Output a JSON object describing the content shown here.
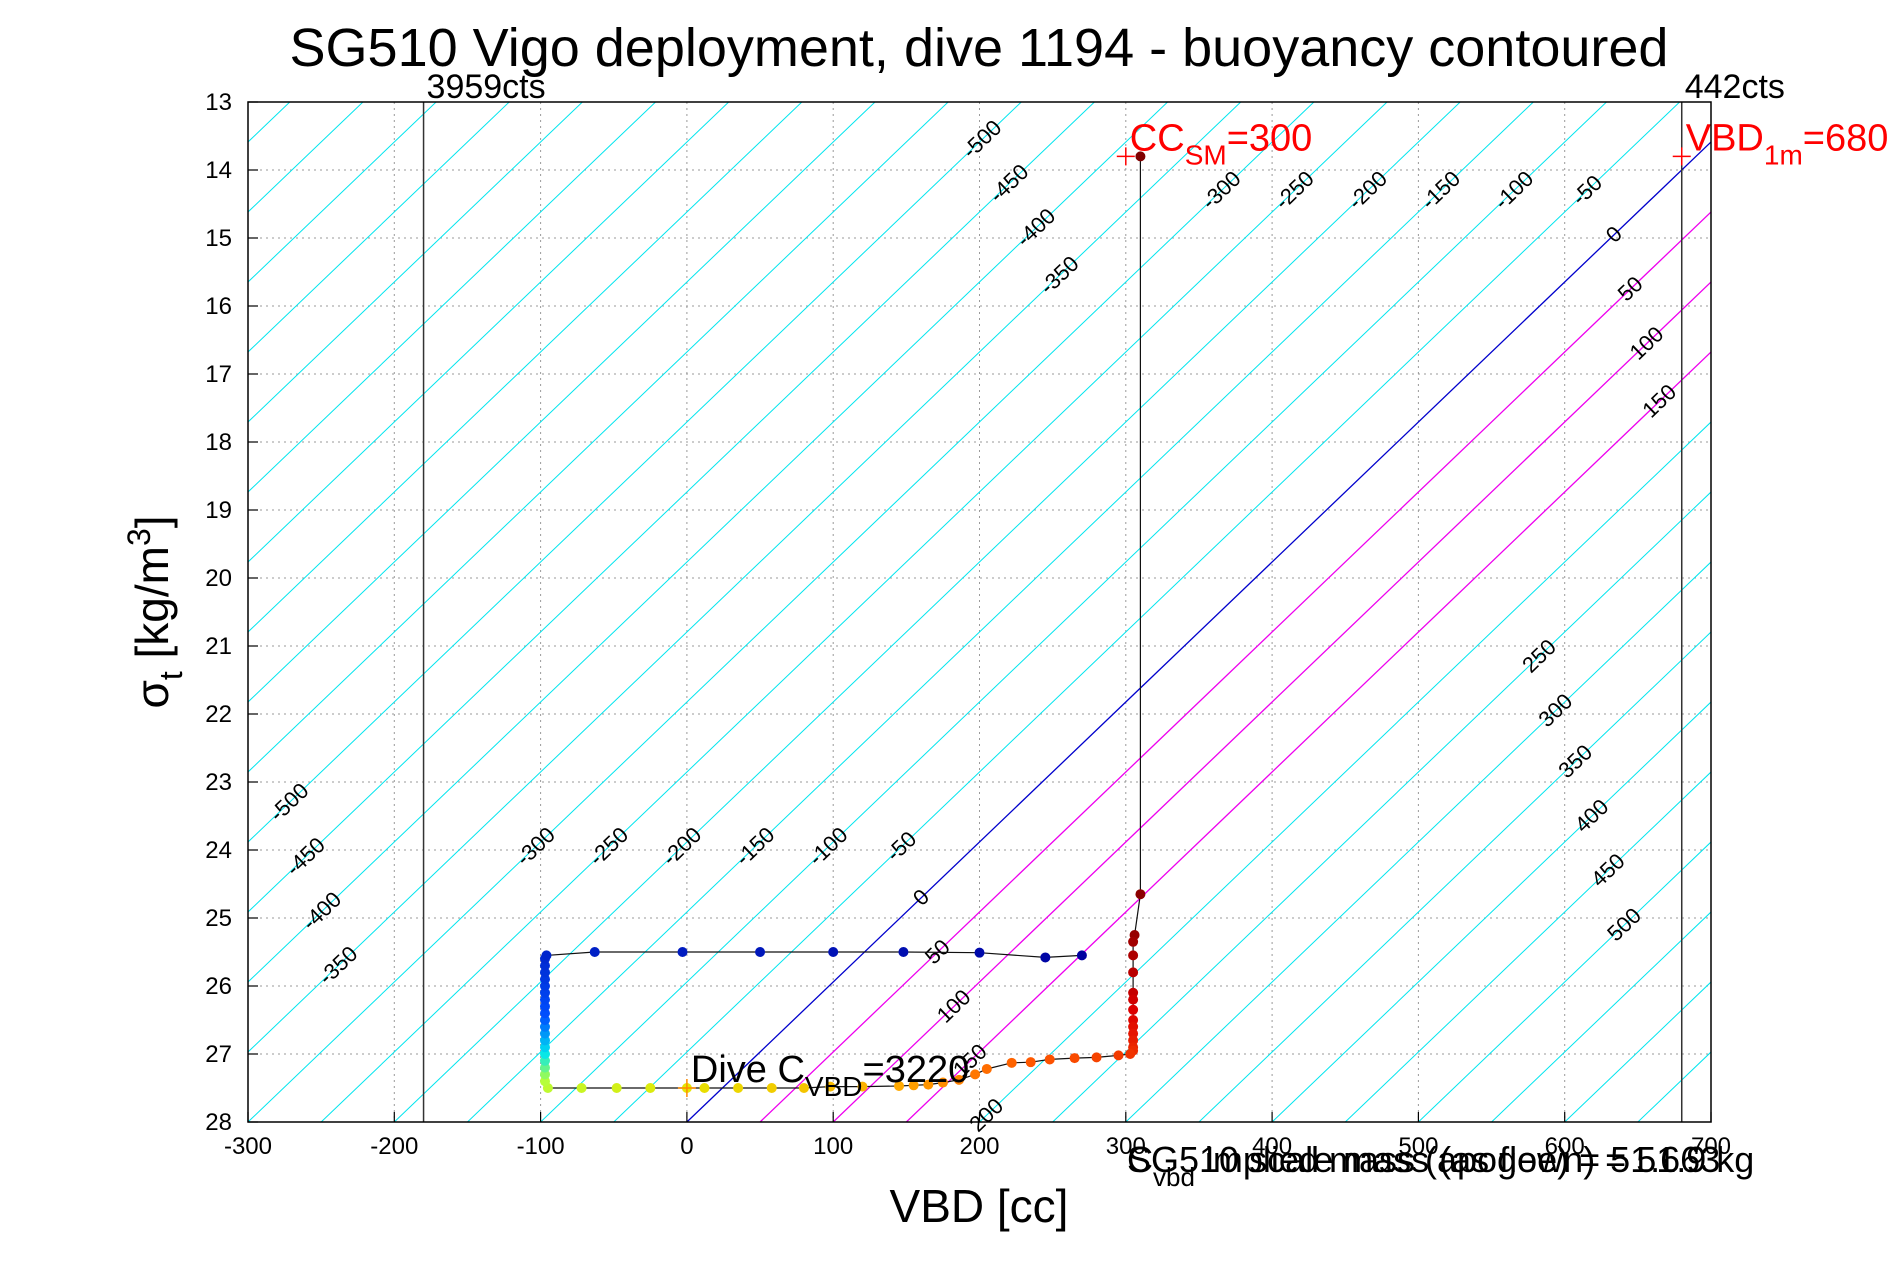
{
  "chart_data": {
    "type": "scatter",
    "title": "SG510 Vigo deployment, dive 1194 - buoyancy contoured",
    "xlabel": "VBD [cc]",
    "ylabel_main": "σ",
    "ylabel_sub": "t",
    "ylabel_rest": " [kg/m",
    "ylabel_sup": "3",
    "ylabel_close": "]",
    "xlim": [
      -300,
      700
    ],
    "ylim": [
      13,
      28
    ],
    "y_reversed": true,
    "grid": true,
    "x_ticks": [
      -300,
      -200,
      -100,
      0,
      100,
      200,
      300,
      400,
      500,
      600,
      700
    ],
    "x_tick_labels": [
      "-300",
      "-200",
      "-100",
      "0",
      "100",
      "200",
      "300",
      "400",
      "500",
      "600",
      "700"
    ],
    "y_ticks": [
      13,
      14,
      15,
      16,
      17,
      18,
      19,
      20,
      21,
      22,
      23,
      24,
      25,
      26,
      27,
      28
    ],
    "y_tick_labels": [
      "13",
      "14",
      "15",
      "16",
      "17",
      "18",
      "19",
      "20",
      "21",
      "22",
      "23",
      "24",
      "25",
      "26",
      "27",
      "28"
    ],
    "vertical_lines": [
      {
        "x": -180,
        "label": "3959cts"
      },
      {
        "x": 680,
        "label": "442cts"
      }
    ],
    "contours": {
      "zero_line": {
        "x_at_sigma28": 0,
        "x_at_sigma14": 680
      },
      "levels": [
        -500,
        -450,
        -400,
        -350,
        -300,
        -250,
        -200,
        -150,
        -100,
        -50,
        0,
        50,
        100,
        150,
        200,
        250,
        300,
        350,
        400,
        450,
        500
      ],
      "level_labels": [
        "-500",
        "-450",
        "-400",
        "-350",
        "-300",
        "-250",
        "-200",
        "-150",
        "-100",
        "-50",
        "0",
        "50",
        "100",
        "150",
        "200",
        "250",
        "300",
        "350",
        "400",
        "450",
        "500"
      ],
      "dx_per_level": 100,
      "colors": {
        "negative": "#00e5ee",
        "zero": "#0000cc",
        "positive": "#ee00ee",
        "high_positive": "#00e5ee"
      },
      "magenta_levels": [
        50,
        100,
        150
      ]
    },
    "markers": [
      {
        "name": "cc_sm",
        "x": 300,
        "y": 13.8,
        "color": "#ff0000",
        "label_main": "CC",
        "label_sub": "SM",
        "label_rest": "=300"
      },
      {
        "name": "vbd_1m",
        "x": 680,
        "y": 13.8,
        "color": "#ff0000",
        "label_main": "VBD",
        "label_sub": "1m",
        "label_rest": "=680"
      },
      {
        "name": "dive_c_vbd",
        "x": 0,
        "y": 27.5,
        "color": "#ff8c00",
        "label_main": "Dive C",
        "label_sub": "VBD",
        "label_rest": "=3220"
      }
    ],
    "overlapping_text": [
      {
        "main": "C",
        "sub": "vbd",
        "rest": " implied mass (apogee) = 51.663"
      },
      {
        "main": "SG510 scale mass (as flown) = 51.9 kg",
        "sub": "",
        "rest": ""
      }
    ],
    "series": [
      {
        "name": "",
        "points": [
          [
            310,
            13.8
          ],
          [
            310,
            24.65
          ],
          [
            306,
            25.25
          ],
          [
            305,
            25.35
          ],
          [
            305,
            25.55
          ],
          [
            305,
            25.8
          ],
          [
            305,
            26.1
          ],
          [
            305,
            26.2
          ],
          [
            305,
            26.35
          ],
          [
            305,
            26.5
          ],
          [
            305,
            26.6
          ],
          [
            305,
            26.7
          ],
          [
            305,
            26.8
          ],
          [
            305,
            26.9
          ],
          [
            305,
            26.95
          ],
          [
            303,
            27.0
          ],
          [
            295,
            27.02
          ],
          [
            280,
            27.05
          ],
          [
            265,
            27.06
          ],
          [
            248,
            27.08
          ],
          [
            235,
            27.12
          ],
          [
            222,
            27.13
          ],
          [
            205,
            27.22
          ],
          [
            197,
            27.3
          ],
          [
            186,
            27.38
          ],
          [
            175,
            27.42
          ],
          [
            165,
            27.45
          ],
          [
            155,
            27.46
          ],
          [
            145,
            27.47
          ],
          [
            120,
            27.48
          ],
          [
            98,
            27.48
          ],
          [
            80,
            27.5
          ],
          [
            58,
            27.5
          ],
          [
            35,
            27.5
          ],
          [
            12,
            27.5
          ],
          [
            0,
            27.5
          ],
          [
            -25,
            27.5
          ],
          [
            -48,
            27.5
          ],
          [
            -72,
            27.5
          ],
          [
            -95,
            27.5
          ],
          [
            -97,
            27.4
          ],
          [
            -97,
            27.3
          ],
          [
            -97,
            27.2
          ],
          [
            -97,
            27.1
          ],
          [
            -97,
            27.0
          ],
          [
            -97,
            26.9
          ],
          [
            -97,
            26.8
          ],
          [
            -97,
            26.7
          ],
          [
            -97,
            26.6
          ],
          [
            -97,
            26.5
          ],
          [
            -97,
            26.4
          ],
          [
            -97,
            26.3
          ],
          [
            -97,
            26.2
          ],
          [
            -97,
            26.1
          ],
          [
            -97,
            26.0
          ],
          [
            -97,
            25.9
          ],
          [
            -97,
            25.8
          ],
          [
            -97,
            25.7
          ],
          [
            -97,
            25.6
          ],
          [
            -96,
            25.55
          ],
          [
            -63,
            25.5
          ],
          [
            -3,
            25.5
          ],
          [
            50,
            25.5
          ],
          [
            100,
            25.5
          ],
          [
            148,
            25.5
          ],
          [
            200,
            25.51
          ],
          [
            245,
            25.58
          ],
          [
            270,
            25.55
          ]
        ]
      }
    ]
  }
}
